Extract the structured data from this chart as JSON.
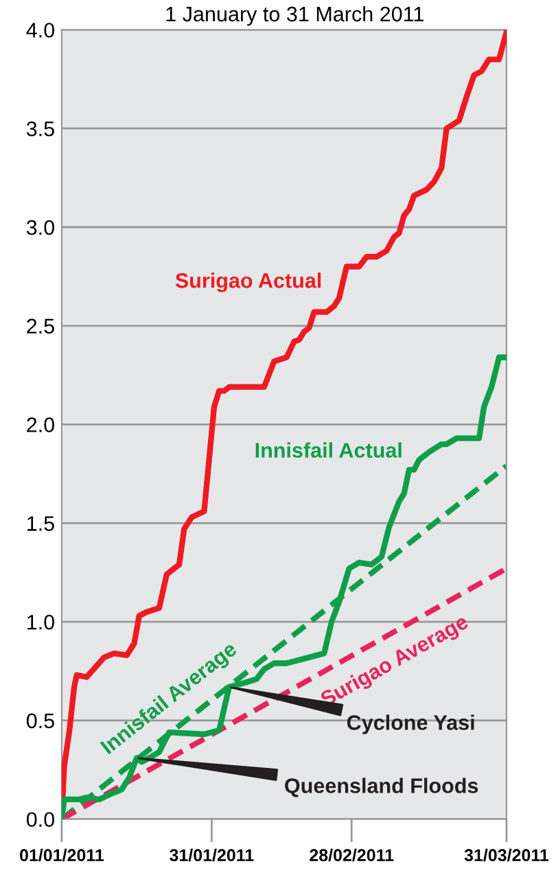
{
  "chart_data": {
    "type": "line",
    "title": "1 January to 31 March 2011",
    "xlim": [
      "2011-01-01",
      "2011-03-31"
    ],
    "xticks": [
      {
        "value": "2011-01-01",
        "label": "01/01/2011"
      },
      {
        "value": "2011-01-31",
        "label": "31/01/2011"
      },
      {
        "value": "2011-02-28",
        "label": "28/02/2011"
      },
      {
        "value": "2011-03-31",
        "label": "31/03/2011"
      }
    ],
    "ylim": [
      0,
      4
    ],
    "yticks": [
      {
        "value": 0,
        "label": "0.0"
      },
      {
        "value": 0.5,
        "label": "0.5"
      },
      {
        "value": 1,
        "label": "1.0"
      },
      {
        "value": 1.5,
        "label": "1.5"
      },
      {
        "value": 2,
        "label": "2.0"
      },
      {
        "value": 2.5,
        "label": "2.5"
      },
      {
        "value": 3,
        "label": "3.0"
      },
      {
        "value": 3.5,
        "label": "3.5"
      },
      {
        "value": 4,
        "label": "4.0"
      }
    ],
    "grid": "y",
    "legend": false,
    "series": [
      {
        "name": "Surigao Actual",
        "color": "#ed1c24",
        "line_style": "solid",
        "x": [
          "2011-01-01",
          "2011-01-01T12:00",
          "2011-01-02T12:00",
          "2011-01-03T12:00",
          "2011-01-04",
          "2011-01-06",
          "2011-01-09T12:00",
          "2011-01-11T12:00",
          "2011-01-14",
          "2011-01-15T12:00",
          "2011-01-16T12:00",
          "2011-01-18",
          "2011-01-20T12:00",
          "2011-01-22",
          "2011-01-24T12:00",
          "2011-01-25T12:00",
          "2011-01-27",
          "2011-01-29T12:00",
          "2011-01-31T12:00",
          "2011-02-01T12:00",
          "2011-02-02T12:00",
          "2011-02-03T12:00",
          "2011-02-10T12:00",
          "2011-02-12T12:00",
          "2011-02-15",
          "2011-02-16T12:00",
          "2011-02-17T12:00",
          "2011-02-18T12:00",
          "2011-02-19T12:00",
          "2011-02-20T12:00",
          "2011-02-23",
          "2011-02-24T12:00",
          "2011-02-25T12:00",
          "2011-02-27",
          "2011-03-01T12:00",
          "2011-03-03",
          "2011-03-05",
          "2011-03-07",
          "2011-03-08T12:00",
          "2011-03-09T12:00",
          "2011-03-10T12:00",
          "2011-03-11T12:00",
          "2011-03-12T12:00",
          "2011-03-15",
          "2011-03-16T12:00",
          "2011-03-18",
          "2011-03-19",
          "2011-03-21T12:00",
          "2011-03-23",
          "2011-03-24T12:00",
          "2011-03-26",
          "2011-03-27T12:00",
          "2011-03-29T12:00",
          "2011-03-31"
        ],
        "values": [
          0,
          0.27,
          0.44,
          0.67,
          0.73,
          0.72,
          0.82,
          0.84,
          0.83,
          0.89,
          1.03,
          1.05,
          1.07,
          1.24,
          1.29,
          1.47,
          1.53,
          1.56,
          2.09,
          2.17,
          2.17,
          2.19,
          2.19,
          2.32,
          2.34,
          2.42,
          2.43,
          2.47,
          2.49,
          2.57,
          2.57,
          2.6,
          2.64,
          2.8,
          2.8,
          2.85,
          2.85,
          2.88,
          2.95,
          2.97,
          3.06,
          3.09,
          3.16,
          3.19,
          3.23,
          3.3,
          3.5,
          3.54,
          3.66,
          3.77,
          3.79,
          3.85,
          3.85,
          3.99
        ]
      },
      {
        "name": "Innisfail Actual",
        "color": "#0f9e4a",
        "line_style": "solid",
        "x": [
          "2011-01-01",
          "2011-01-01T12:00",
          "2011-01-04T12:00",
          "2011-01-06",
          "2011-01-08T12:00",
          "2011-01-11",
          "2011-01-13",
          "2011-01-14T12:00",
          "2011-01-16",
          "2011-01-17",
          "2011-01-18T12:00",
          "2011-01-20T12:00",
          "2011-01-22T12:00",
          "2011-01-29T12:00",
          "2011-01-31",
          "2011-02-01T12:00",
          "2011-02-03T12:00",
          "2011-02-06T12:00",
          "2011-02-09",
          "2011-02-10T12:00",
          "2011-02-12T12:00",
          "2011-02-15",
          "2011-02-22T12:00",
          "2011-02-24",
          "2011-02-25T12:00",
          "2011-02-27T12:00",
          "2011-03-01T12:00",
          "2011-03-04",
          "2011-03-06",
          "2011-03-07T12:00",
          "2011-03-09T12:00",
          "2011-03-10T12:00",
          "2011-03-11T12:00",
          "2011-03-12T12:00",
          "2011-03-13T12:00",
          "2011-03-15T12:00",
          "2011-03-18",
          "2011-03-19",
          "2011-03-21",
          "2011-03-25T12:00",
          "2011-03-26T12:00",
          "2011-03-28",
          "2011-03-29T12:00",
          "2011-03-31"
        ],
        "values": [
          0,
          0.1,
          0.1,
          0.11,
          0.1,
          0.13,
          0.15,
          0.21,
          0.31,
          0.29,
          0.31,
          0.34,
          0.44,
          0.43,
          0.44,
          0.45,
          0.67,
          0.69,
          0.71,
          0.76,
          0.79,
          0.79,
          0.84,
          1.0,
          1.1,
          1.27,
          1.3,
          1.29,
          1.33,
          1.48,
          1.61,
          1.65,
          1.77,
          1.77,
          1.82,
          1.86,
          1.9,
          1.9,
          1.93,
          1.93,
          2.09,
          2.19,
          2.34,
          2.34
        ]
      },
      {
        "name": "Innisfail Average",
        "color": "#0f9e4a",
        "line_style": "dashed",
        "x": [
          "2011-01-01",
          "2011-03-31"
        ],
        "values": [
          0,
          1.79
        ]
      },
      {
        "name": "Surigao Average",
        "color": "#e8245c",
        "line_style": "dashed",
        "x": [
          "2011-01-01",
          "2011-03-31"
        ],
        "values": [
          0,
          1.27
        ]
      }
    ],
    "annotations": [
      {
        "text": "Cyclone Yasi",
        "x": "2011-02-03T12:00",
        "y": 0.67
      },
      {
        "text": "Queensland Floods",
        "x": "2011-01-16",
        "y": 0.31
      }
    ]
  }
}
